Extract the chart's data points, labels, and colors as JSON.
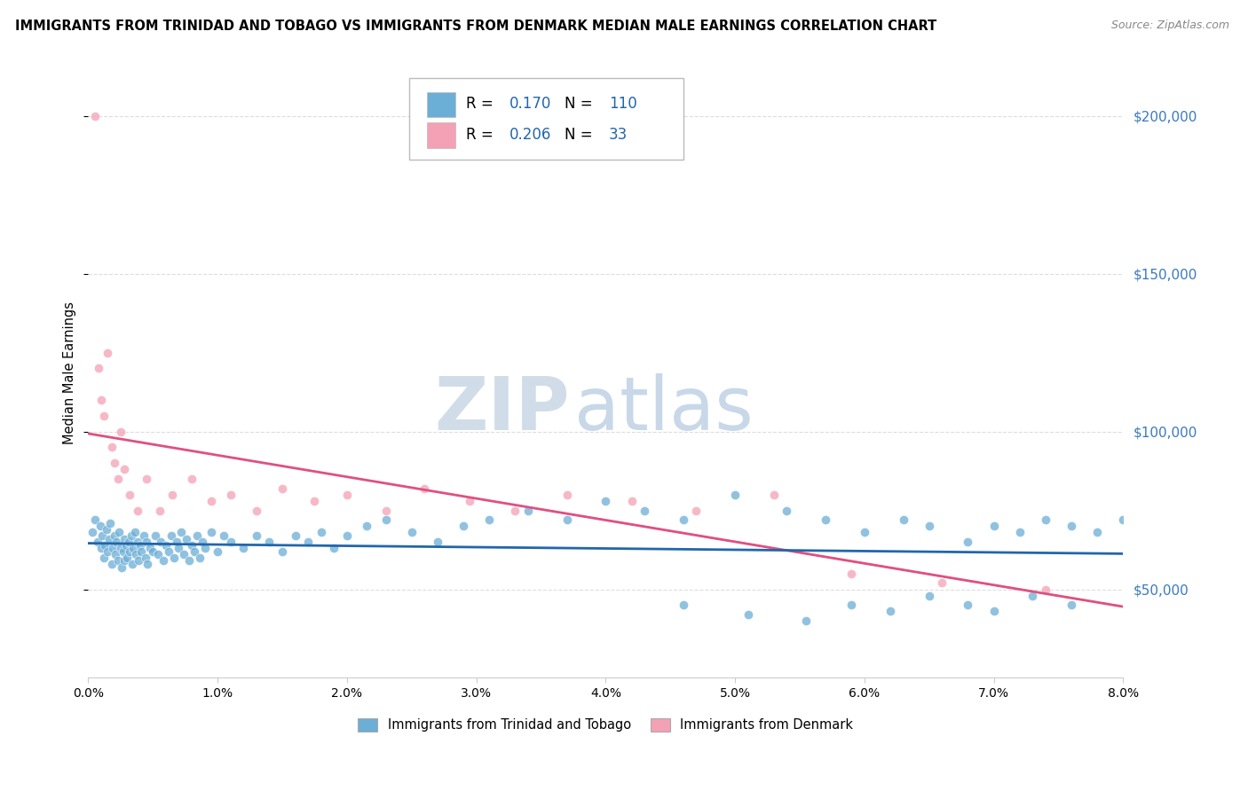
{
  "title": "IMMIGRANTS FROM TRINIDAD AND TOBAGO VS IMMIGRANTS FROM DENMARK MEDIAN MALE EARNINGS CORRELATION CHART",
  "source": "Source: ZipAtlas.com",
  "ylabel": "Median Male Earnings",
  "legend1_label": "Immigrants from Trinidad and Tobago",
  "legend2_label": "Immigrants from Denmark",
  "r1": 0.17,
  "n1": 110,
  "r2": 0.206,
  "n2": 33,
  "color1": "#6baed6",
  "color2": "#f4a0b5",
  "color1_line": "#2166ac",
  "color2_line": "#e05080",
  "yticks": [
    50000,
    100000,
    150000,
    200000
  ],
  "ytick_labels": [
    "$50,000",
    "$100,000",
    "$150,000",
    "$200,000"
  ],
  "xlim": [
    0.0,
    0.08
  ],
  "ylim": [
    22000,
    215000
  ],
  "watermark_zip": "ZIP",
  "watermark_atlas": "atlas",
  "tt_scatter_x": [
    0.0003,
    0.0005,
    0.0007,
    0.0009,
    0.001,
    0.0011,
    0.0012,
    0.0013,
    0.0014,
    0.0015,
    0.0016,
    0.0017,
    0.0018,
    0.0019,
    0.002,
    0.0021,
    0.0022,
    0.0023,
    0.0024,
    0.0025,
    0.0026,
    0.0027,
    0.0028,
    0.0028,
    0.0029,
    0.003,
    0.0031,
    0.0032,
    0.0033,
    0.0034,
    0.0035,
    0.0036,
    0.0037,
    0.0038,
    0.0039,
    0.004,
    0.0041,
    0.0043,
    0.0044,
    0.0045,
    0.0046,
    0.0048,
    0.005,
    0.0052,
    0.0054,
    0.0056,
    0.0058,
    0.006,
    0.0062,
    0.0064,
    0.0066,
    0.0068,
    0.007,
    0.0072,
    0.0074,
    0.0076,
    0.0078,
    0.008,
    0.0082,
    0.0084,
    0.0086,
    0.0088,
    0.009,
    0.0095,
    0.01,
    0.0105,
    0.011,
    0.012,
    0.013,
    0.014,
    0.015,
    0.016,
    0.017,
    0.018,
    0.019,
    0.02,
    0.0215,
    0.023,
    0.025,
    0.027,
    0.029,
    0.031,
    0.034,
    0.037,
    0.04,
    0.043,
    0.046,
    0.05,
    0.054,
    0.057,
    0.06,
    0.063,
    0.065,
    0.068,
    0.07,
    0.072,
    0.074,
    0.076,
    0.078,
    0.08,
    0.046,
    0.051,
    0.0555,
    0.059,
    0.062,
    0.065,
    0.068,
    0.07,
    0.073,
    0.076
  ],
  "tt_scatter_y": [
    68000,
    72000,
    65000,
    70000,
    63000,
    67000,
    60000,
    64000,
    69000,
    62000,
    66000,
    71000,
    58000,
    63000,
    67000,
    61000,
    65000,
    59000,
    68000,
    63000,
    57000,
    62000,
    66000,
    59000,
    64000,
    60000,
    65000,
    62000,
    67000,
    58000,
    63000,
    68000,
    61000,
    65000,
    59000,
    64000,
    62000,
    67000,
    60000,
    65000,
    58000,
    63000,
    62000,
    67000,
    61000,
    65000,
    59000,
    64000,
    62000,
    67000,
    60000,
    65000,
    63000,
    68000,
    61000,
    66000,
    59000,
    64000,
    62000,
    67000,
    60000,
    65000,
    63000,
    68000,
    62000,
    67000,
    65000,
    63000,
    67000,
    65000,
    62000,
    67000,
    65000,
    68000,
    63000,
    67000,
    70000,
    72000,
    68000,
    65000,
    70000,
    72000,
    75000,
    72000,
    78000,
    75000,
    72000,
    80000,
    75000,
    72000,
    68000,
    72000,
    70000,
    65000,
    70000,
    68000,
    72000,
    70000,
    68000,
    72000,
    45000,
    42000,
    40000,
    45000,
    43000,
    48000,
    45000,
    43000,
    48000,
    45000
  ],
  "dk_scatter_x": [
    0.0005,
    0.0008,
    0.001,
    0.0012,
    0.0015,
    0.0018,
    0.002,
    0.0023,
    0.0025,
    0.0028,
    0.0032,
    0.0038,
    0.0045,
    0.0055,
    0.0065,
    0.008,
    0.0095,
    0.011,
    0.013,
    0.015,
    0.0175,
    0.02,
    0.023,
    0.026,
    0.0295,
    0.033,
    0.037,
    0.042,
    0.047,
    0.053,
    0.059,
    0.066,
    0.074
  ],
  "dk_scatter_y": [
    200000,
    120000,
    110000,
    105000,
    125000,
    95000,
    90000,
    85000,
    100000,
    88000,
    80000,
    75000,
    85000,
    75000,
    80000,
    85000,
    78000,
    80000,
    75000,
    82000,
    78000,
    80000,
    75000,
    82000,
    78000,
    75000,
    80000,
    78000,
    75000,
    80000,
    55000,
    52000,
    50000
  ]
}
